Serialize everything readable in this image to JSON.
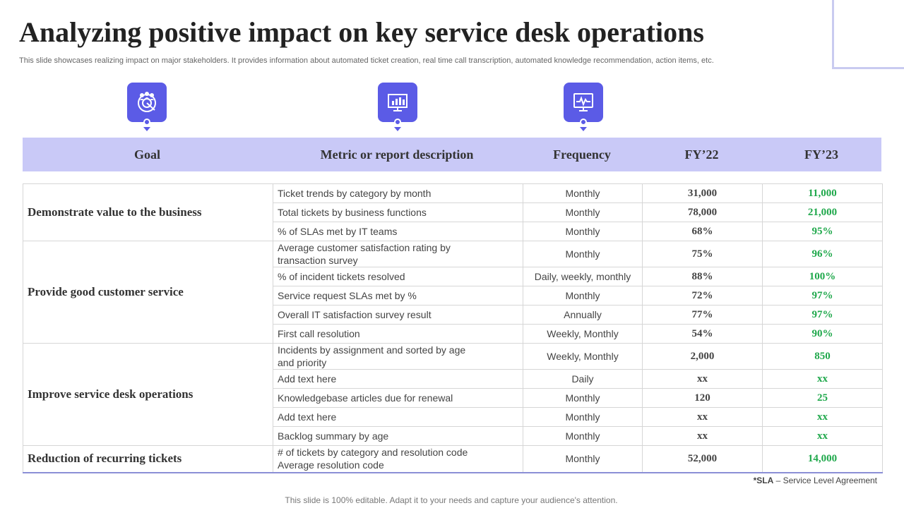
{
  "title": "Analyzing positive impact on key service desk operations",
  "subtitle": "This slide showcases realizing impact on major stakeholders. It provides information about automated ticket creation, real time call transcription, automated knowledge recommendation, action items, etc.",
  "colors": {
    "accent": "#5b5be6",
    "header_band": "#c9c9f7",
    "fy23_text": "#1fa84b"
  },
  "icons": [
    "team-target-icon",
    "presentation-chart-icon",
    "monitor-analytics-icon"
  ],
  "headers": {
    "goal": "Goal",
    "metric": "Metric or report description",
    "frequency": "Frequency",
    "fy22": "FY’22",
    "fy23": "FY’23"
  },
  "goals": [
    {
      "goal": "Demonstrate value to the business",
      "rows": [
        {
          "metric": "Ticket trends by category by month",
          "frequency": "Monthly",
          "fy22": "31,000",
          "fy23": "11,000"
        },
        {
          "metric": "Total tickets by business functions",
          "frequency": "Monthly",
          "fy22": "78,000",
          "fy23": "21,000"
        },
        {
          "metric": "% of SLAs met by IT teams",
          "frequency": "Monthly",
          "fy22": "68%",
          "fy23": "95%"
        }
      ]
    },
    {
      "goal": "Provide good customer service",
      "rows": [
        {
          "metric": "Average customer satisfaction rating by transaction survey",
          "frequency": "Monthly",
          "fy22": "75%",
          "fy23": "96%"
        },
        {
          "metric": "% of incident tickets resolved",
          "frequency": "Daily, weekly, monthly",
          "fy22": "88%",
          "fy23": "100%"
        },
        {
          "metric": "Service request SLAs met by %",
          "frequency": "Monthly",
          "fy22": "72%",
          "fy23": "97%"
        },
        {
          "metric": "Overall IT satisfaction survey result",
          "frequency": "Annually",
          "fy22": "77%",
          "fy23": "97%"
        },
        {
          "metric": "First call resolution",
          "frequency": "Weekly, Monthly",
          "fy22": "54%",
          "fy23": "90%"
        }
      ]
    },
    {
      "goal": "Improve service desk operations",
      "rows": [
        {
          "metric": "Incidents by assignment and sorted by age and priority",
          "frequency": "Weekly, Monthly",
          "fy22": "2,000",
          "fy23": "850"
        },
        {
          "metric": "Add text here",
          "frequency": "Daily",
          "fy22": "xx",
          "fy23": "xx"
        },
        {
          "metric": "Knowledgebase articles due for renewal",
          "frequency": "Monthly",
          "fy22": "120",
          "fy23": "25"
        },
        {
          "metric": "Add text here",
          "frequency": "Monthly",
          "fy22": "xx",
          "fy23": "xx"
        },
        {
          "metric": "Backlog summary by age",
          "frequency": "Monthly",
          "fy22": "xx",
          "fy23": "xx"
        }
      ]
    },
    {
      "goal": "Reduction of recurring tickets",
      "rows": [
        {
          "metric": "# of tickets by category and resolution code Average resolution code",
          "frequency": "Monthly",
          "fy22": "52,000",
          "fy23": "14,000"
        }
      ]
    }
  ],
  "footnote": {
    "abbr": "*SLA",
    "definition": " – Service Level Agreement"
  },
  "footer": "This slide is 100% editable. Adapt it to your needs and capture your audience's attention."
}
